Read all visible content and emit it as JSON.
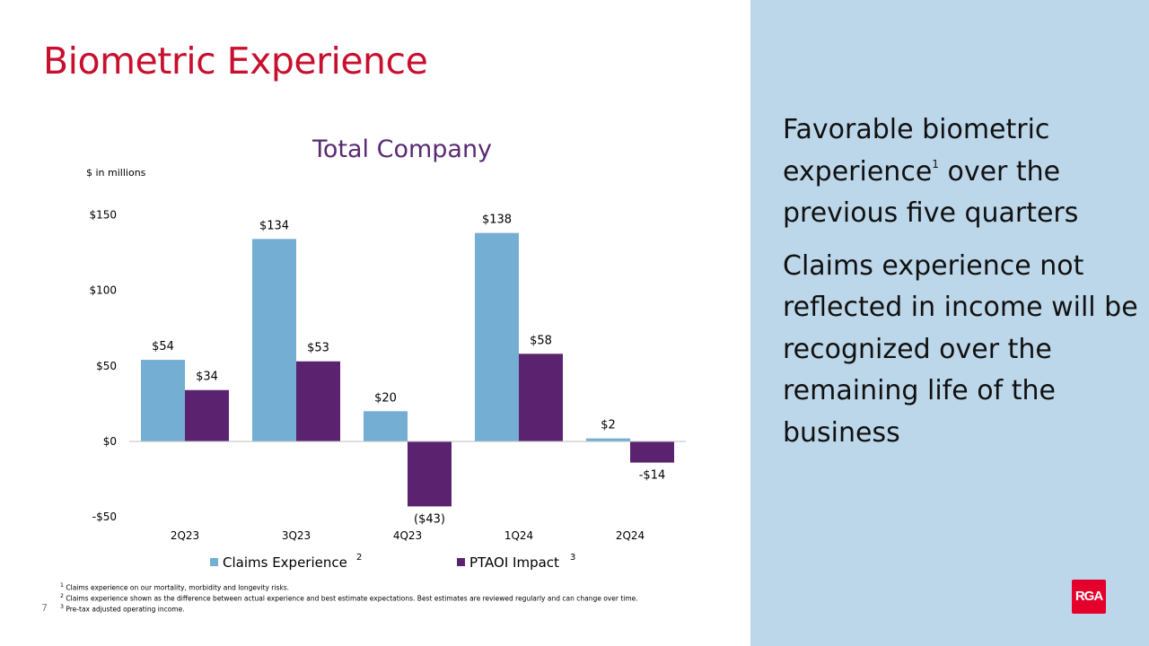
{
  "slide": {
    "title": "Biometric Experience",
    "page_number": "7"
  },
  "colors": {
    "title": "#c8102e",
    "claims": "#74afd3",
    "ptaoi": "#5b236f",
    "panel": "#bdd7ea",
    "chart_title": "#5a2a73",
    "logo": "#e4002b"
  },
  "side": {
    "p1_before_sup": "Favorable biometric experience",
    "p1_sup": "1",
    "p1_after_sup": " over the previous five quarters",
    "p2": "Claims experience not reflected in income will be recognized over the remaining life of the business",
    "logo_text": "RGA"
  },
  "chart_data": {
    "type": "bar",
    "title": "Total Company",
    "unit_label": "$ in millions",
    "categories": [
      "2Q23",
      "3Q23",
      "4Q23",
      "1Q24",
      "2Q24"
    ],
    "series": [
      {
        "name": "Claims Experience",
        "legend_sup": "2",
        "values": [
          54,
          134,
          20,
          138,
          2
        ],
        "labels": [
          "$54",
          "$134",
          "$20",
          "$138",
          "$2"
        ]
      },
      {
        "name": "PTAOI Impact",
        "legend_sup": "3",
        "values": [
          34,
          53,
          -43,
          58,
          -14
        ],
        "labels": [
          "$34",
          "$53",
          "($43)",
          "$58",
          "-$14"
        ]
      }
    ],
    "yticks": [
      150,
      100,
      50,
      0,
      -50
    ],
    "ytick_labels": [
      "$150",
      "$100",
      "$50",
      "$0",
      "-$50"
    ],
    "ylim": [
      -50,
      150
    ],
    "grid": false,
    "legend_position": "bottom"
  },
  "footnotes": [
    {
      "num": "1",
      "text": "Claims experience on our mortality, morbidity and longevity risks."
    },
    {
      "num": "2",
      "text": "Claims experience shown as the difference between actual experience and best estimate expectations. Best estimates are reviewed regularly and can change over time."
    },
    {
      "num": "3",
      "text": "Pre-tax adjusted operating income."
    }
  ]
}
